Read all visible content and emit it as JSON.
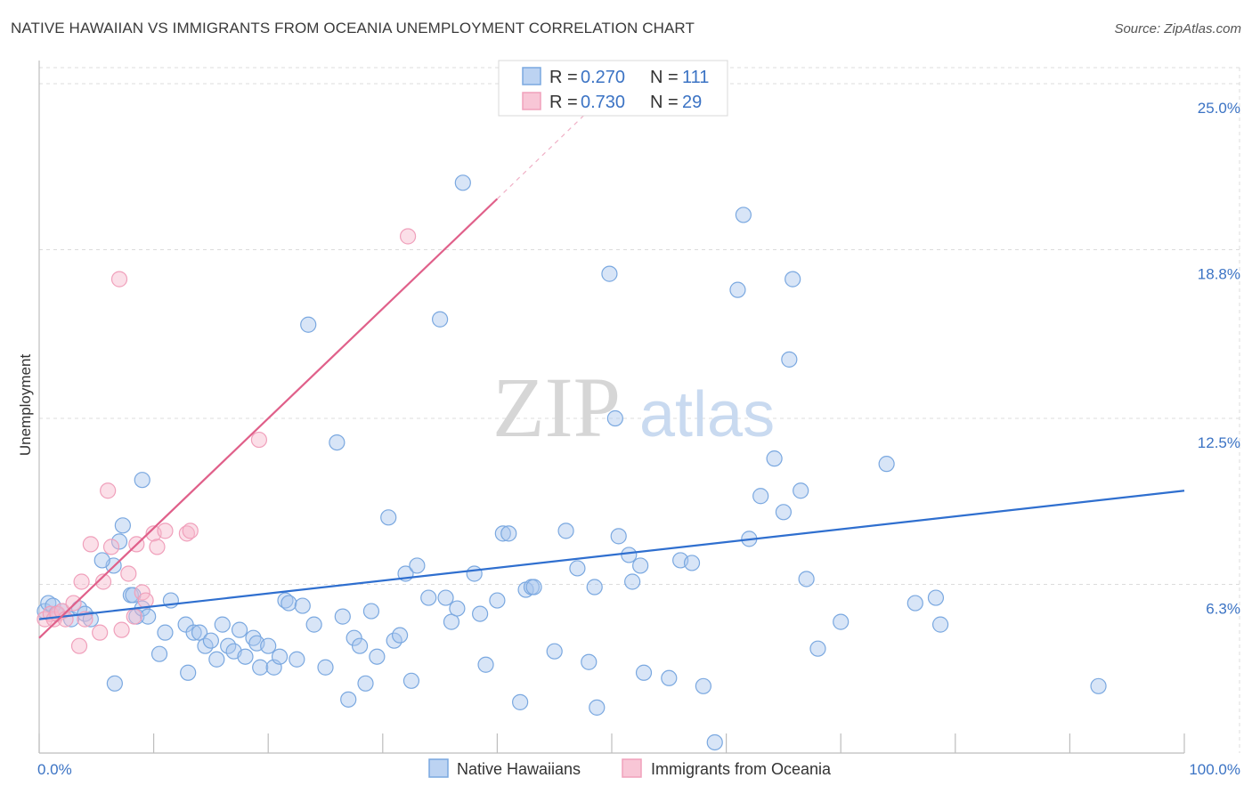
{
  "title": "NATIVE HAWAIIAN VS IMMIGRANTS FROM OCEANIA UNEMPLOYMENT CORRELATION CHART",
  "source": "Source: ZipAtlas.com",
  "watermark": {
    "zip": "ZIP",
    "atlas": "atlas"
  },
  "colors": {
    "blue": "#7aa8e0",
    "blue_line": "#2f6fcf",
    "pink": "#f0a0bb",
    "pink_line": "#e0608a",
    "tick": "#3b73c4"
  },
  "chart_data": {
    "type": "scatter",
    "xlabel": "",
    "ylabel": "Unemployment",
    "xlim": [
      0,
      100
    ],
    "ylim": [
      0,
      25.6
    ],
    "y_ticks": [
      {
        "value": 6.3,
        "label": "6.3%"
      },
      {
        "value": 12.5,
        "label": "12.5%"
      },
      {
        "value": 18.8,
        "label": "18.8%"
      },
      {
        "value": 25.0,
        "label": "25.0%"
      }
    ],
    "x_ticks": [
      {
        "value": 0,
        "label": "0.0%"
      },
      {
        "value": 100,
        "label": "100.0%"
      }
    ],
    "legend": {
      "r_label": "R =",
      "n_label": "N =",
      "entries": [
        {
          "r": "0.270",
          "n": "111"
        },
        {
          "r": "0.730",
          "n": "29"
        }
      ]
    },
    "series": [
      {
        "name": "Native Hawaiians",
        "trend": {
          "x0": 0,
          "y0": 5.0,
          "x1": 100,
          "y1": 9.8
        },
        "points": [
          [
            0.5,
            5.3
          ],
          [
            0.8,
            5.6
          ],
          [
            1.2,
            5.5
          ],
          [
            1.5,
            5.2
          ],
          [
            2,
            5.3
          ],
          [
            2.8,
            5.0
          ],
          [
            3.5,
            5.4
          ],
          [
            4,
            5.2
          ],
          [
            4.5,
            5.0
          ],
          [
            6.5,
            7.0
          ],
          [
            5.5,
            7.2
          ],
          [
            7,
            7.9
          ],
          [
            7.3,
            8.5
          ],
          [
            6.6,
            2.6
          ],
          [
            8,
            5.9
          ],
          [
            8.2,
            5.9
          ],
          [
            8.5,
            5.1
          ],
          [
            9,
            5.4
          ],
          [
            9.5,
            5.1
          ],
          [
            9,
            10.2
          ],
          [
            10.5,
            3.7
          ],
          [
            11,
            4.5
          ],
          [
            11.5,
            5.7
          ],
          [
            12.8,
            4.8
          ],
          [
            13,
            3.0
          ],
          [
            13.5,
            4.5
          ],
          [
            14,
            4.5
          ],
          [
            14.5,
            4.0
          ],
          [
            15,
            4.2
          ],
          [
            15.5,
            3.5
          ],
          [
            16,
            4.8
          ],
          [
            16.5,
            4.0
          ],
          [
            17,
            3.8
          ],
          [
            17.5,
            4.6
          ],
          [
            18,
            3.6
          ],
          [
            18.7,
            4.3
          ],
          [
            19,
            4.1
          ],
          [
            19.3,
            3.2
          ],
          [
            20,
            4.0
          ],
          [
            20.5,
            3.2
          ],
          [
            21,
            3.6
          ],
          [
            21.5,
            5.7
          ],
          [
            21.8,
            5.6
          ],
          [
            22.5,
            3.5
          ],
          [
            23,
            5.5
          ],
          [
            23.5,
            16.0
          ],
          [
            24,
            4.8
          ],
          [
            25,
            3.2
          ],
          [
            26,
            11.6
          ],
          [
            26.5,
            5.1
          ],
          [
            27,
            2.0
          ],
          [
            27.5,
            4.3
          ],
          [
            28,
            4.0
          ],
          [
            28.5,
            2.6
          ],
          [
            29,
            5.3
          ],
          [
            29.5,
            3.6
          ],
          [
            30.5,
            8.8
          ],
          [
            31,
            4.2
          ],
          [
            31.5,
            4.4
          ],
          [
            32,
            6.7
          ],
          [
            33,
            7.0
          ],
          [
            32.5,
            2.7
          ],
          [
            34,
            5.8
          ],
          [
            35,
            16.2
          ],
          [
            35.5,
            5.8
          ],
          [
            36,
            4.9
          ],
          [
            36.5,
            5.4
          ],
          [
            37,
            21.3
          ],
          [
            38,
            6.7
          ],
          [
            38.5,
            5.2
          ],
          [
            39,
            3.3
          ],
          [
            40,
            5.7
          ],
          [
            40.5,
            8.2
          ],
          [
            41,
            8.2
          ],
          [
            42,
            1.9
          ],
          [
            42.5,
            6.1
          ],
          [
            43,
            6.2
          ],
          [
            43.2,
            6.2
          ],
          [
            45,
            3.8
          ],
          [
            46,
            8.3
          ],
          [
            47,
            6.9
          ],
          [
            48,
            3.4
          ],
          [
            48.5,
            6.2
          ],
          [
            48.7,
            1.7
          ],
          [
            49.8,
            17.9
          ],
          [
            50.3,
            12.5
          ],
          [
            50.6,
            8.1
          ],
          [
            51.5,
            7.4
          ],
          [
            51.8,
            6.4
          ],
          [
            52.5,
            7.0
          ],
          [
            52.8,
            3.0
          ],
          [
            55,
            2.8
          ],
          [
            56,
            7.2
          ],
          [
            57,
            7.1
          ],
          [
            58,
            2.5
          ],
          [
            59,
            0.4
          ],
          [
            61,
            17.3
          ],
          [
            61.5,
            20.1
          ],
          [
            62,
            8.0
          ],
          [
            63,
            9.6
          ],
          [
            64.2,
            11.0
          ],
          [
            65,
            9.0
          ],
          [
            65.5,
            14.7
          ],
          [
            65.8,
            17.7
          ],
          [
            66.5,
            9.8
          ],
          [
            67,
            6.5
          ],
          [
            68,
            3.9
          ],
          [
            70,
            4.9
          ],
          [
            74,
            10.8
          ],
          [
            76.5,
            5.6
          ],
          [
            78.3,
            5.8
          ],
          [
            78.7,
            4.8
          ],
          [
            92.5,
            2.5
          ]
        ]
      },
      {
        "name": "Immigrants from Oceania",
        "trend": {
          "x0": 0,
          "y0": 4.3,
          "x1": 40,
          "y1": 20.7,
          "dash_x1": 48.5,
          "dash_y1": 24.2
        },
        "points": [
          [
            0.5,
            5.0
          ],
          [
            1,
            5.2
          ],
          [
            1.3,
            5.0
          ],
          [
            1.6,
            5.2
          ],
          [
            2,
            5.3
          ],
          [
            2.3,
            5.0
          ],
          [
            3,
            5.6
          ],
          [
            3.5,
            4.0
          ],
          [
            3.7,
            6.4
          ],
          [
            4,
            5.0
          ],
          [
            4.5,
            7.8
          ],
          [
            5.3,
            4.5
          ],
          [
            5.6,
            6.4
          ],
          [
            6,
            9.8
          ],
          [
            6.3,
            7.7
          ],
          [
            7,
            17.7
          ],
          [
            7.2,
            4.6
          ],
          [
            7.8,
            6.7
          ],
          [
            8.3,
            5.1
          ],
          [
            8.5,
            7.8
          ],
          [
            9,
            6.0
          ],
          [
            9.3,
            5.7
          ],
          [
            10,
            8.2
          ],
          [
            10.3,
            7.7
          ],
          [
            11,
            8.3
          ],
          [
            12.9,
            8.2
          ],
          [
            13.2,
            8.3
          ],
          [
            19.2,
            11.7
          ],
          [
            32.2,
            19.3
          ]
        ]
      }
    ]
  }
}
